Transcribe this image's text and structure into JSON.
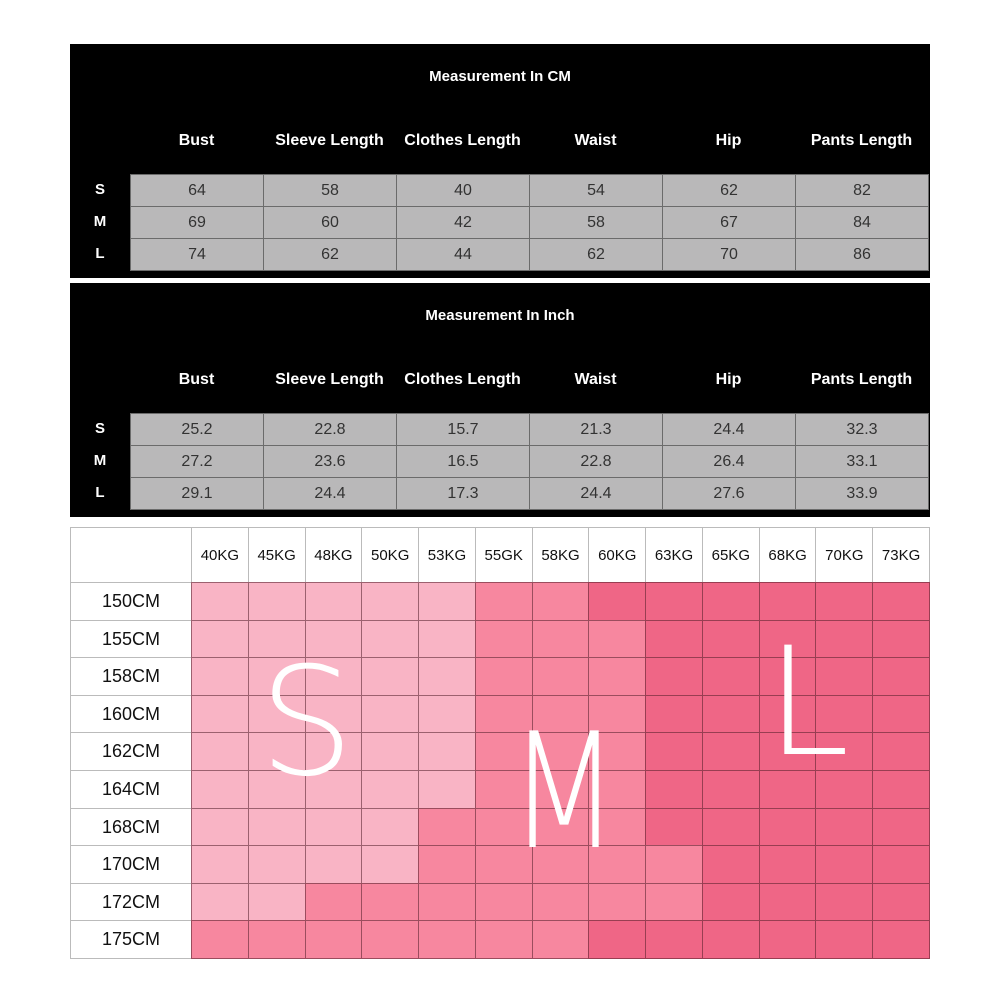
{
  "tables": [
    {
      "title": "Measurement In CM",
      "headers": [
        "Bust",
        "Sleeve Length",
        "Clothes Length",
        "Waist",
        "Hip",
        "Pants Length"
      ],
      "rows": [
        {
          "size": "S",
          "values": [
            "64",
            "58",
            "40",
            "54",
            "62",
            "82"
          ]
        },
        {
          "size": "M",
          "values": [
            "69",
            "60",
            "42",
            "58",
            "67",
            "84"
          ]
        },
        {
          "size": "L",
          "values": [
            "74",
            "62",
            "44",
            "62",
            "70",
            "86"
          ]
        }
      ]
    },
    {
      "title": "Measurement In Inch",
      "headers": [
        "Bust",
        "Sleeve Length",
        "Clothes Length",
        "Waist",
        "Hip",
        "Pants Length"
      ],
      "rows": [
        {
          "size": "S",
          "values": [
            "25.2",
            "22.8",
            "15.7",
            "21.3",
            "24.4",
            "32.3"
          ]
        },
        {
          "size": "M",
          "values": [
            "27.2",
            "23.6",
            "16.5",
            "22.8",
            "26.4",
            "33.1"
          ]
        },
        {
          "size": "L",
          "values": [
            "29.1",
            "24.4",
            "17.3",
            "24.4",
            "27.6",
            "33.9"
          ]
        }
      ]
    }
  ],
  "size_grid": {
    "weights": [
      "40KG",
      "45KG",
      "48KG",
      "50KG",
      "53KG",
      "55GK",
      "58KG",
      "60KG",
      "63KG",
      "65KG",
      "68KG",
      "70KG",
      "73KG"
    ],
    "heights": [
      "150CM",
      "155CM",
      "158CM",
      "160CM",
      "162CM",
      "164CM",
      "168CM",
      "170CM",
      "172CM",
      "175CM"
    ],
    "map": [
      "SSSSSMMLLLLLL",
      "SSSSSMMMLLLLL",
      "SSSSSMMMLLLLL",
      "SSSSSMMMLLLLL",
      "SSSSSMMMLLLLL",
      "SSSSSMMMLLLLL",
      "SSSSMMMMLLLLL",
      "SSSSMMMMMLLLL",
      "SSMMMMMMMLLLL",
      "MMMMMMMLLLLLL"
    ],
    "labels": {
      "S": "S",
      "M": "M",
      "L": "L"
    },
    "colors": {
      "S": "#f9b4c5",
      "M": "#f7879f",
      "L": "#ef6686"
    }
  }
}
